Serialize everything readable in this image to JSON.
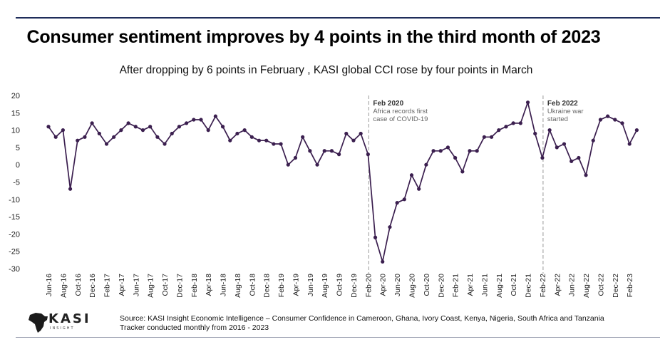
{
  "header": {
    "title": "Consumer sentiment improves by 4 points in the third month of 2023",
    "subtitle": "After dropping by 6 points in February , KASI global CCI rose by four points in March"
  },
  "chart_data": {
    "type": "line",
    "ylim": [
      -30,
      20
    ],
    "yticks": [
      20,
      15,
      10,
      5,
      0,
      -5,
      -10,
      -15,
      -20,
      -25,
      -30
    ],
    "ytick_labels": [
      "20",
      "15",
      "10",
      "5",
      "0",
      "-5",
      "-10",
      "-15",
      "-20",
      "-25",
      "-30"
    ],
    "grid": false,
    "line_color": "#3b1f4f",
    "x_tick_labels": [
      {
        "i": 0,
        "label": "Jun-16"
      },
      {
        "i": 2,
        "label": "Aug-16"
      },
      {
        "i": 4,
        "label": "Oct-16"
      },
      {
        "i": 6,
        "label": "Dec-16"
      },
      {
        "i": 8,
        "label": "Feb-17"
      },
      {
        "i": 10,
        "label": "Apr-17"
      },
      {
        "i": 12,
        "label": "Jun-17"
      },
      {
        "i": 14,
        "label": "Aug-17"
      },
      {
        "i": 16,
        "label": "Oct-17"
      },
      {
        "i": 18,
        "label": "Dec-17"
      },
      {
        "i": 20,
        "label": "Feb-18"
      },
      {
        "i": 22,
        "label": "Apr-18"
      },
      {
        "i": 24,
        "label": "Jun-18"
      },
      {
        "i": 26,
        "label": "Aug-18"
      },
      {
        "i": 28,
        "label": "Oct-18"
      },
      {
        "i": 30,
        "label": "Dec-18"
      },
      {
        "i": 32,
        "label": "Feb-19"
      },
      {
        "i": 34,
        "label": "Apr-19"
      },
      {
        "i": 36,
        "label": "Jun-19"
      },
      {
        "i": 38,
        "label": "Aug-19"
      },
      {
        "i": 40,
        "label": "Oct-19"
      },
      {
        "i": 42,
        "label": "Dec-19"
      },
      {
        "i": 44,
        "label": "Feb-20"
      },
      {
        "i": 46,
        "label": "Apr-20"
      },
      {
        "i": 48,
        "label": "Jun-20"
      },
      {
        "i": 50,
        "label": "Aug-20"
      },
      {
        "i": 52,
        "label": "Oct-20"
      },
      {
        "i": 54,
        "label": "Dec-20"
      },
      {
        "i": 56,
        "label": "Feb-21"
      },
      {
        "i": 58,
        "label": "Apr-21"
      },
      {
        "i": 60,
        "label": "Jun-21"
      },
      {
        "i": 62,
        "label": "Aug-21"
      },
      {
        "i": 64,
        "label": "Oct-21"
      },
      {
        "i": 66,
        "label": "Dec-21"
      },
      {
        "i": 68,
        "label": "Feb-22"
      },
      {
        "i": 70,
        "label": "Apr-22"
      },
      {
        "i": 72,
        "label": "Jun-22"
      },
      {
        "i": 74,
        "label": "Aug-22"
      },
      {
        "i": 76,
        "label": "Oct-22"
      },
      {
        "i": 78,
        "label": "Dec-22"
      },
      {
        "i": 80,
        "label": "Feb-23"
      }
    ],
    "series": [
      {
        "values": [
          11,
          8,
          10,
          -7,
          7,
          8,
          12,
          9,
          6,
          8,
          10,
          12,
          11,
          10,
          11,
          8,
          6,
          9,
          11,
          12,
          13,
          13,
          10,
          14,
          11,
          7,
          9,
          10,
          8,
          7,
          7,
          6,
          6,
          0,
          2,
          8,
          4,
          0,
          4,
          4,
          3,
          9,
          7,
          9,
          3,
          -21,
          -28,
          -18,
          -11,
          -10,
          -3,
          -7,
          0,
          4,
          4,
          5,
          2,
          -2,
          4,
          4,
          8,
          8,
          10,
          11,
          12,
          12,
          18,
          9,
          2,
          10,
          5,
          6,
          1,
          2,
          -3,
          7,
          13,
          14,
          13,
          12,
          6,
          10
        ]
      }
    ],
    "annotations": [
      {
        "i": 44,
        "title": "Feb 2020",
        "lines": [
          "Africa records first",
          "case of COVID-19"
        ]
      },
      {
        "i": 68,
        "title": "Feb 2022",
        "lines": [
          "Ukraine war",
          "started"
        ]
      }
    ]
  },
  "footer": {
    "logo_text": "KASI",
    "logo_sub": "INSIGHT",
    "source_line1": "Source: KASI Insight Economic Intelligence – Consumer Confidence in Cameroon, Ghana, Ivory Coast, Kenya, Nigeria, South Africa and Tanzania",
    "source_line2": "Tracker conducted monthly from 2016 - 2023"
  }
}
